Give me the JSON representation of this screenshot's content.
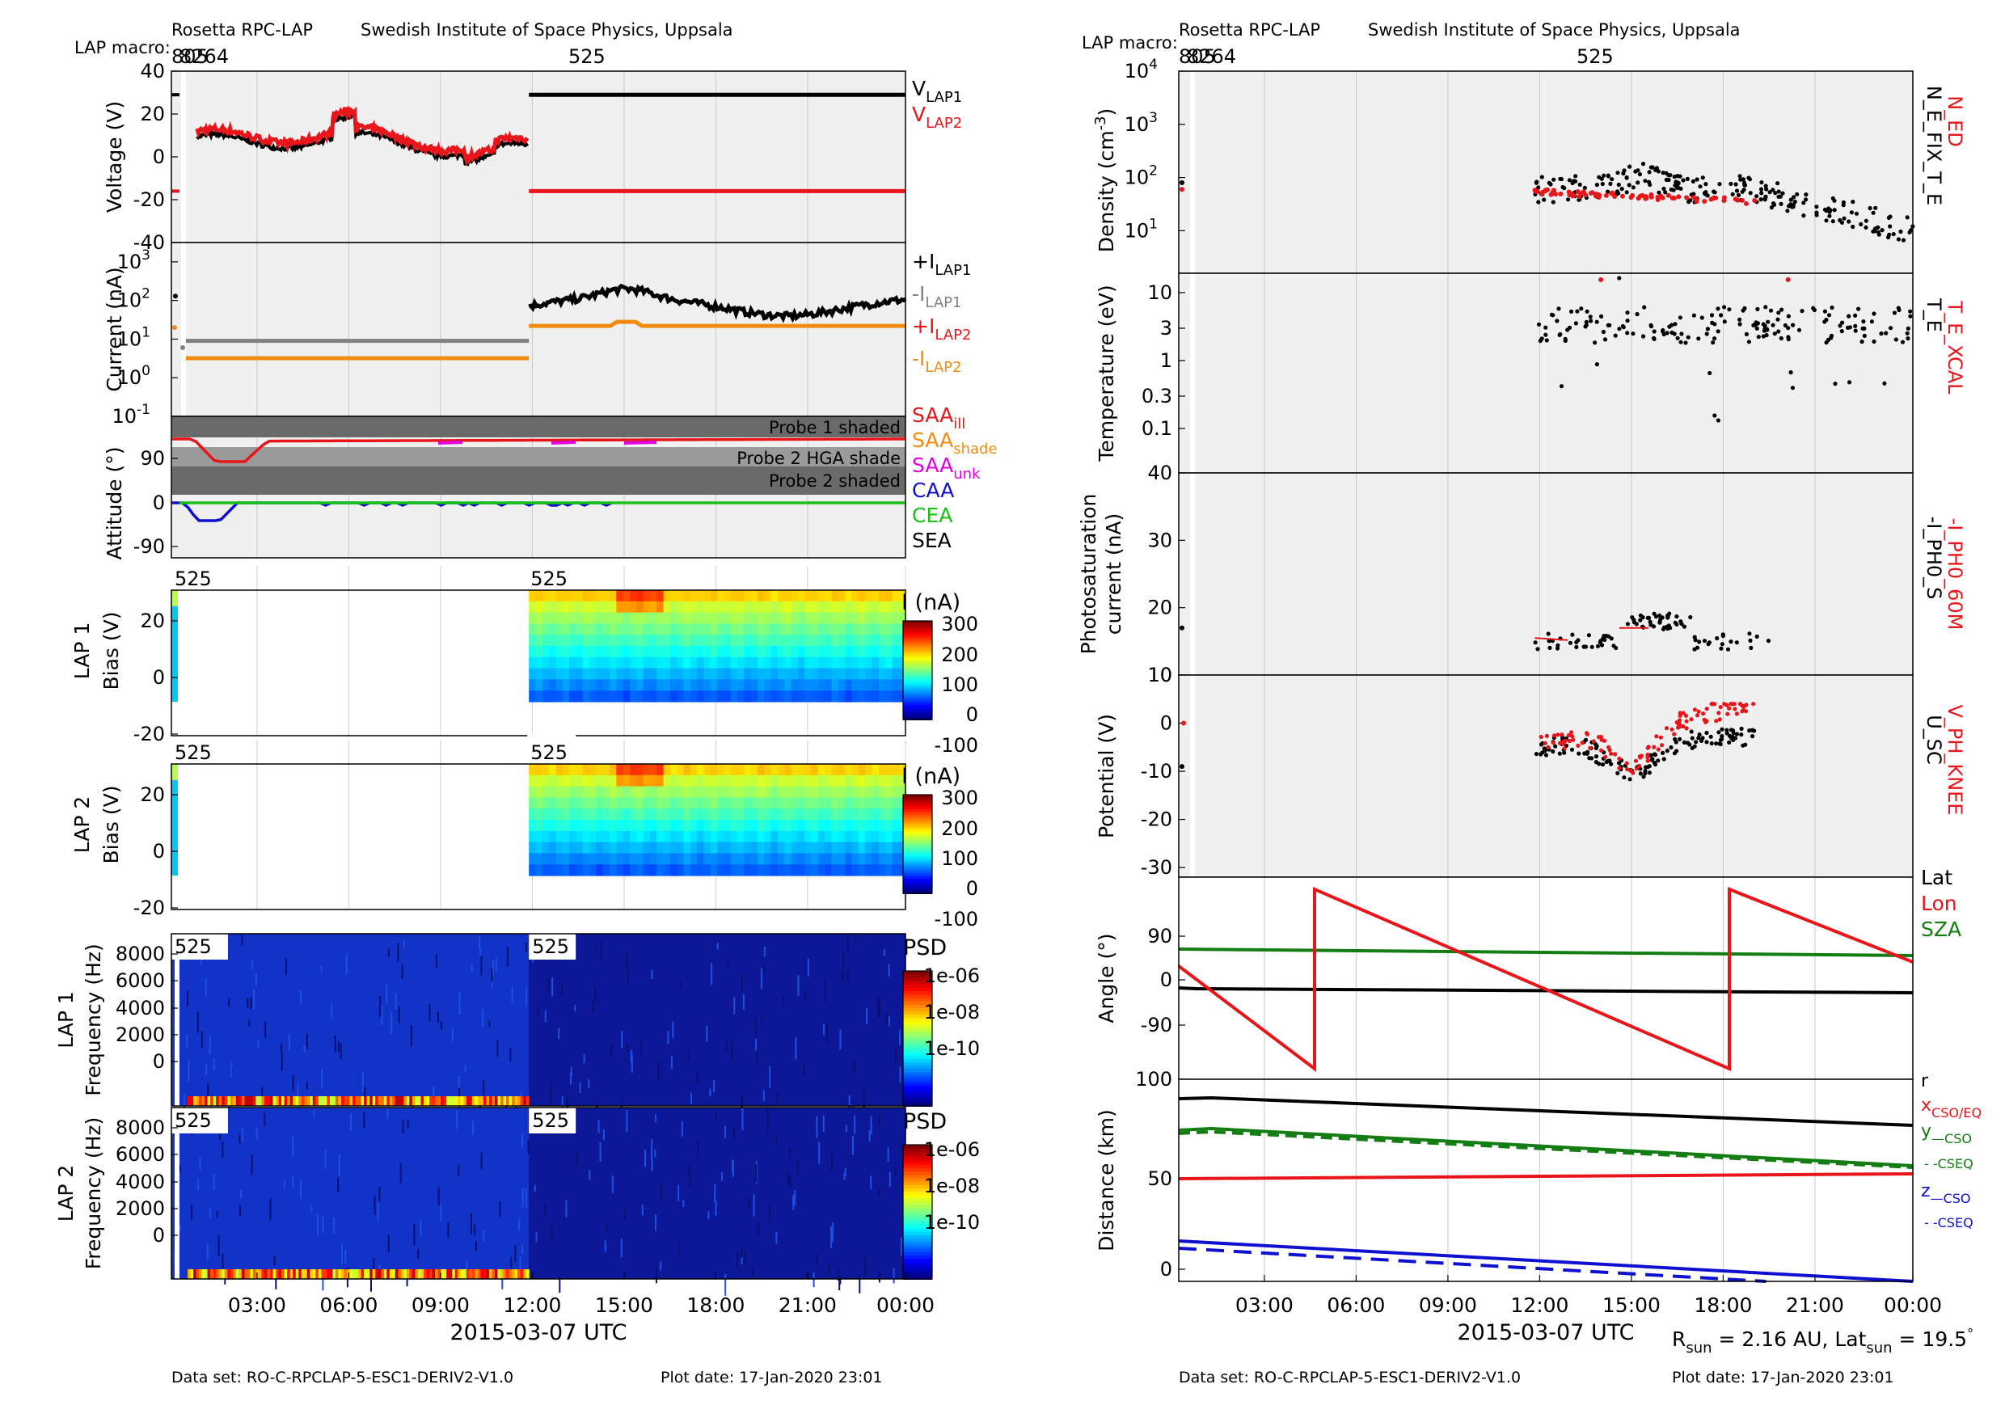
{
  "left": {
    "header": {
      "title": "Rosetta RPC-LAP",
      "institute": "Swedish Institute of Space Physics, Uppsala",
      "macro_label": "LAP macro:",
      "macro_prefix": "805",
      "macro_prefix2": "8264",
      "macro_main": "525"
    },
    "xaxis": {
      "ticks": [
        "03:00",
        "06:00",
        "09:00",
        "12:00",
        "15:00",
        "18:00",
        "21:00",
        "00:00"
      ],
      "label": "2015-03-07 UTC"
    },
    "footer": {
      "dataset": "Data set: RO-C-RPCLAP-5-ESC1-DERIV2-V1.0",
      "plotdate": "Plot date: 17-Jan-2020 23:01"
    }
  },
  "right": {
    "header": {
      "title": "Rosetta RPC-LAP",
      "institute": "Swedish Institute of Space Physics, Uppsala",
      "macro_label": "LAP macro:",
      "macro_prefix": "805",
      "macro_prefix2": "8264",
      "macro_main": "525"
    },
    "xaxis": {
      "ticks": [
        "03:00",
        "06:00",
        "09:00",
        "12:00",
        "15:00",
        "18:00",
        "21:00",
        "00:00"
      ],
      "label": "2015-03-07 UTC"
    },
    "footer": {
      "dataset": "Data set: RO-C-RPCLAP-5-ESC1-DERIV2-V1.0",
      "plotdate": "Plot date: 17-Jan-2020 23:01"
    },
    "rsun": {
      "r_main": "R",
      "r_sub": "sun",
      "r_text": " = 2.16 AU, Lat",
      "lat_sub": "sun",
      "lat_text": " = 19.5",
      "deg": "°"
    }
  },
  "colors": {
    "red": "#e8161b",
    "black": "#000000",
    "grey": "#808080",
    "orange": "#f28c0f",
    "magenta": "#e000e0",
    "blue": "#1010d0",
    "green": "#18c018",
    "darkgreen": "#137d13",
    "panel_bg": "#f0f0f0",
    "shade": "#6a6a6a",
    "shade2": "#9a9a9a"
  },
  "chart_data": [
    {
      "id": "voltage",
      "type": "line",
      "ylabel": "Voltage (V)",
      "ylim": [
        -40,
        40
      ],
      "yticks": [
        "40",
        "20",
        "0",
        "-20",
        "-40"
      ],
      "series": [
        {
          "name": "V_LAP1",
          "color": "black"
        },
        {
          "name": "V_LAP2",
          "color": "red"
        }
      ],
      "legend": [
        {
          "main": "V",
          "sub": "LAP1",
          "color": "black"
        },
        {
          "main": "V",
          "sub": "LAP2",
          "color": "red"
        }
      ]
    },
    {
      "id": "current",
      "type": "line",
      "ylabel": "Current (nA)",
      "scale": "log",
      "ylim": [
        0.1,
        1000
      ],
      "yticks": [
        {
          "b": "10",
          "e": "3"
        },
        {
          "b": "10",
          "e": "2"
        },
        {
          "b": "10",
          "e": "1"
        },
        {
          "b": "10",
          "e": "0"
        },
        {
          "b": "10",
          "e": "-1"
        }
      ],
      "series": [
        {
          "name": "+I_LAP1",
          "color": "black"
        },
        {
          "name": "-I_LAP1",
          "color": "grey"
        },
        {
          "name": "+I_LAP2",
          "color": "red"
        },
        {
          "name": "-I_LAP2",
          "color": "orange"
        }
      ],
      "legend": [
        {
          "main": "+I",
          "sub": "LAP1",
          "color": "black"
        },
        {
          "main": "-I",
          "sub": "LAP1",
          "color": "grey"
        },
        {
          "main": "+I",
          "sub": "LAP2",
          "color": "red"
        },
        {
          "main": "-I",
          "sub": "LAP2",
          "color": "orange"
        }
      ]
    },
    {
      "id": "attitude",
      "type": "line",
      "ylabel": "Attitude (°)",
      "yticks": [
        "90",
        "0",
        "-90"
      ],
      "bands": [
        "Probe 1 shaded",
        "Probe 2 HGA shade",
        "Probe 2 shaded"
      ],
      "legend": [
        {
          "main": "SAA",
          "sub": "ill",
          "color": "red"
        },
        {
          "main": "SAA",
          "sub": "shade",
          "color": "orange"
        },
        {
          "main": "SAA",
          "sub": "unk",
          "color": "magenta"
        },
        {
          "main": "CAA",
          "sub": "",
          "color": "blue"
        },
        {
          "main": "CEA",
          "sub": "",
          "color": "green"
        },
        {
          "main": "SEA",
          "sub": "",
          "color": "black"
        }
      ]
    },
    {
      "id": "sweep1",
      "type": "heatmap",
      "ylabel": "LAP 1",
      "ylabel2": "Bias (V)",
      "yticks": [
        "20",
        "0",
        "-20"
      ],
      "macro": "525",
      "cbar_title": "I (nA)",
      "cbar_ticks": [
        "300",
        "200",
        "100",
        "0",
        "-100"
      ]
    },
    {
      "id": "sweep2",
      "type": "heatmap",
      "ylabel": "LAP 2",
      "ylabel2": "Bias (V)",
      "yticks": [
        "20",
        "0",
        "-20"
      ],
      "macro": "525",
      "cbar_title": "I (nA)",
      "cbar_ticks": [
        "300",
        "200",
        "100",
        "0",
        "-100"
      ]
    },
    {
      "id": "psd1",
      "type": "heatmap",
      "ylabel": "LAP 1",
      "ylabel2": "Frequency (Hz)",
      "yticks": [
        "8000",
        "6000",
        "4000",
        "2000",
        "0"
      ],
      "macro": "525",
      "cbar_title": "PSD",
      "cbar_ticks": [
        "1e-06",
        "1e-08",
        "1e-10"
      ]
    },
    {
      "id": "psd2",
      "type": "heatmap",
      "ylabel": "LAP 2",
      "ylabel2": "Frequency (Hz)",
      "yticks": [
        "8000",
        "6000",
        "4000",
        "2000",
        "0"
      ],
      "macro": "525",
      "cbar_title": "PSD",
      "cbar_ticks": [
        "1e-06",
        "1e-08",
        "1e-10"
      ]
    },
    {
      "id": "density",
      "type": "scatter",
      "ylabel": "Density (cm",
      "ylabel_sup": "-3",
      "ylabel_end": ")",
      "scale": "log",
      "ylim": [
        1,
        10000
      ],
      "yticks": [
        {
          "b": "10",
          "e": "4"
        },
        {
          "b": "10",
          "e": "3"
        },
        {
          "b": "10",
          "e": "2"
        },
        {
          "b": "10",
          "e": "1"
        }
      ],
      "legend_red": "N_ED",
      "legend_black": "N_E_FIX_T_E"
    },
    {
      "id": "temperature",
      "type": "scatter",
      "ylabel": "Temperature (eV)",
      "scale": "log",
      "yticks": [
        "10",
        "3",
        "1",
        "0.3",
        "0.1"
      ],
      "legend_red": "T_E_XCAL",
      "legend_black": "T_E"
    },
    {
      "id": "photo",
      "type": "scatter",
      "ylabel": "Photosaturation",
      "ylabel2": "current (nA)",
      "ylim": [
        10,
        40
      ],
      "yticks": [
        "40",
        "30",
        "20",
        "10"
      ],
      "legend_red": "-I_PH0_60M",
      "legend_black": "-I_PH0_S"
    },
    {
      "id": "potential",
      "type": "scatter",
      "ylabel": "Potential (V)",
      "ylim": [
        -32,
        10
      ],
      "yticks": [
        "10",
        "0",
        "-10",
        "-20",
        "-30"
      ],
      "legend_red": "V_PH_KNEE",
      "legend_black": "U_SC"
    },
    {
      "id": "angle",
      "type": "line",
      "ylabel": "Angle (°)",
      "yticks": [
        "90",
        "0",
        "-90",
        "100"
      ],
      "series": [
        {
          "name": "Lat",
          "color": "black"
        },
        {
          "name": "Lon",
          "color": "red"
        },
        {
          "name": "SZA",
          "color": "darkgreen"
        }
      ]
    },
    {
      "id": "distance",
      "type": "line",
      "ylabel": "Distance (km)",
      "yticks": [
        "50",
        "0"
      ],
      "legend": [
        {
          "main": "r",
          "sub": "",
          "color": "black"
        },
        {
          "main": "x",
          "sub": "CSO/EQ",
          "color": "red"
        },
        {
          "main": "y",
          "sub": "—CSO",
          "color": "darkgreen"
        },
        {
          "main": "",
          "sub": "- -CSEQ",
          "color": "darkgreen"
        },
        {
          "main": "z",
          "sub": "—CSO",
          "color": "blue"
        },
        {
          "main": "",
          "sub": "- -CSEQ",
          "color": "blue"
        }
      ]
    }
  ]
}
